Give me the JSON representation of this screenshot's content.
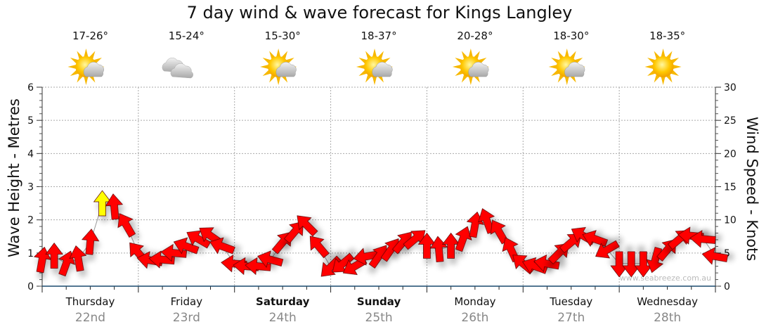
{
  "chart_data": {
    "type": "scatter",
    "title": "7 day wind & wave forecast for Kings Langley",
    "ylabel_left": "Wave Height - Metres",
    "ylabel_right": "Wind Speed - Knots",
    "ylim_left": [
      0,
      6
    ],
    "ylim_right": [
      0,
      30
    ],
    "yticks_left": [
      "0",
      "1",
      "2",
      "3",
      "4",
      "5",
      "6"
    ],
    "yticks_right": [
      "0",
      "5",
      "10",
      "15",
      "20",
      "25",
      "30"
    ],
    "grid": true,
    "watermark": "www.seabreeze.com.au",
    "days": [
      {
        "name": "Thursday",
        "date": "22nd",
        "temp": "17-26°",
        "icon": "sun-cloud",
        "weekend": false
      },
      {
        "name": "Friday",
        "date": "23rd",
        "temp": "15-24°",
        "icon": "cloud",
        "weekend": false
      },
      {
        "name": "Saturday",
        "date": "24th",
        "temp": "15-30°",
        "icon": "sun-cloud",
        "weekend": true
      },
      {
        "name": "Sunday",
        "date": "25th",
        "temp": "18-37°",
        "icon": "sun-cloud",
        "weekend": true
      },
      {
        "name": "Monday",
        "date": "26th",
        "temp": "20-28°",
        "icon": "sun-cloud",
        "weekend": false
      },
      {
        "name": "Tuesday",
        "date": "27th",
        "temp": "18-30°",
        "icon": "sun-cloud",
        "weekend": false
      },
      {
        "name": "Wednesday",
        "date": "28th",
        "temp": "18-35°",
        "icon": "sun",
        "weekend": false
      }
    ],
    "wind_interval_hours": 3,
    "wind_speed_knots": [
      3.9,
      4.5,
      3.4,
      4.1,
      6.6,
      12.4,
      11.9,
      9.2,
      5,
      3.9,
      4,
      5,
      6,
      7.1,
      7.6,
      6,
      3.4,
      3,
      3,
      4,
      6.6,
      8.2,
      9.2,
      6,
      2.9,
      3.4,
      3,
      4.5,
      4.5,
      5.5,
      6.6,
      7.1,
      6,
      5.5,
      6,
      7.1,
      9.2,
      9.8,
      8.2,
      5.5,
      3.4,
      3,
      3.4,
      5,
      6.6,
      7.6,
      7.1,
      5.5,
      3.4,
      3.4,
      3.4,
      4,
      5.5,
      7.1,
      7.6,
      7.1,
      4.5
    ],
    "wind_from_deg": [
      190,
      180,
      200,
      170,
      185,
      180,
      175,
      150,
      140,
      100,
      95,
      95,
      110,
      120,
      125,
      110,
      95,
      95,
      95,
      105,
      220,
      220,
      135,
      140,
      45,
      50,
      60,
      80,
      215,
      215,
      220,
      230,
      180,
      175,
      180,
      200,
      190,
      160,
      150,
      155,
      130,
      110,
      100,
      225,
      230,
      120,
      110,
      60,
      0,
      0,
      0,
      15,
      220,
      230,
      95,
      95,
      100
    ],
    "wind_colors": {
      "light": "#ff0000",
      "strong": "#ffff00",
      "strong_threshold_knots": 12
    }
  }
}
